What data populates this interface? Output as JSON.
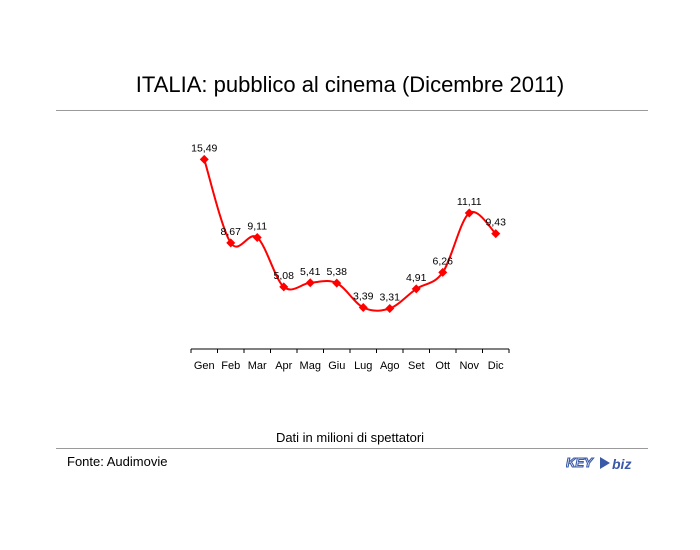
{
  "title": "ITALIA: pubblico al cinema (Dicembre 2011)",
  "note": "Dati in milioni di spettatori",
  "source": "Fonte: Audimovie",
  "logo": {
    "text_a": "KEY",
    "text_b": "biz",
    "color": "#3a5aa8"
  },
  "colors": {
    "line": "#ff0000",
    "marker": "#ff0000",
    "axis": "#000000"
  },
  "chart_data": {
    "type": "line",
    "title": "ITALIA: pubblico al cinema (Dicembre 2011)",
    "xlabel": "",
    "ylabel": "",
    "categories": [
      "Gen",
      "Feb",
      "Mar",
      "Apr",
      "Mag",
      "Giu",
      "Lug",
      "Ago",
      "Set",
      "Ott",
      "Nov",
      "Dic"
    ],
    "values": [
      15.49,
      8.67,
      9.11,
      5.08,
      5.41,
      5.38,
      3.39,
      3.31,
      4.91,
      6.26,
      11.11,
      9.43
    ],
    "labels": [
      "15,49",
      "8,67",
      "9,11",
      "5,08",
      "5,41",
      "5,38",
      "3,39",
      "3,31",
      "4,91",
      "6,26",
      "11,11",
      "9,43"
    ],
    "ylim": [
      0,
      18.3
    ],
    "grid": false,
    "legend": "none",
    "smooth": true,
    "marker": "diamond"
  }
}
